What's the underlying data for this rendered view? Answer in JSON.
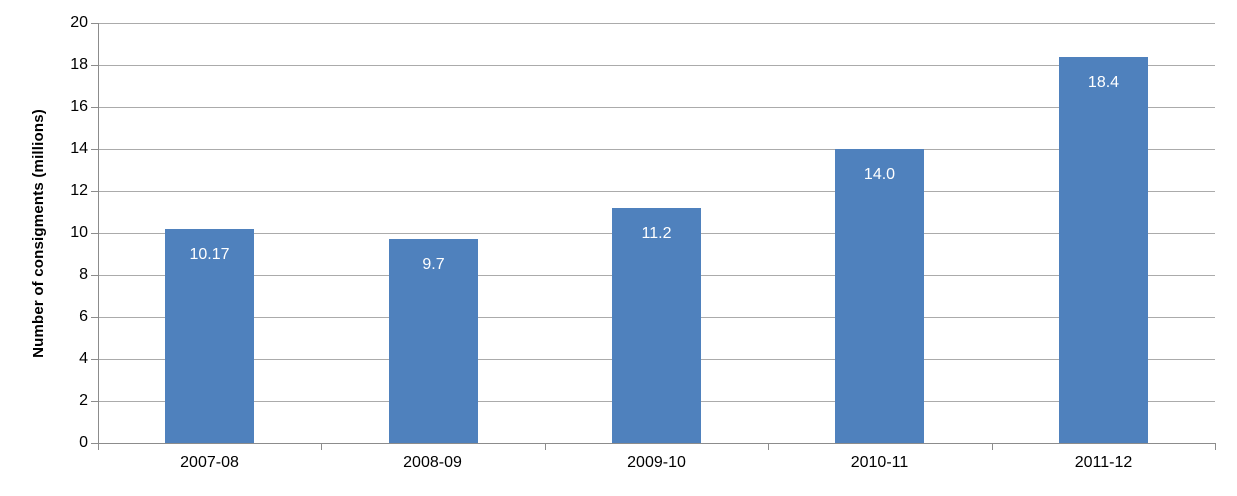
{
  "chart_data": {
    "type": "bar",
    "title": "",
    "xlabel": "",
    "ylabel": "Number of consigments (millions)",
    "categories": [
      "2007-08",
      "2008-09",
      "2009-10",
      "2010-11",
      "2011-12"
    ],
    "values": [
      10.17,
      9.7,
      11.2,
      14.0,
      18.4
    ],
    "value_labels": [
      "10.17",
      "9.7",
      "11.2",
      "14.0",
      "18.4"
    ],
    "ylim": [
      0,
      20
    ],
    "ytick_step": 2,
    "ytick_labels": [
      "0",
      "2",
      "4",
      "6",
      "8",
      "10",
      "12",
      "14",
      "16",
      "18",
      "20"
    ],
    "grid": "horizontal",
    "legend": "none",
    "colors": {
      "bar": "#4f81bd",
      "bar_label": "#ffffff",
      "gridline": "#ababab",
      "axis": "#8c8c8c",
      "text": "#000000",
      "background": "#ffffff"
    }
  }
}
